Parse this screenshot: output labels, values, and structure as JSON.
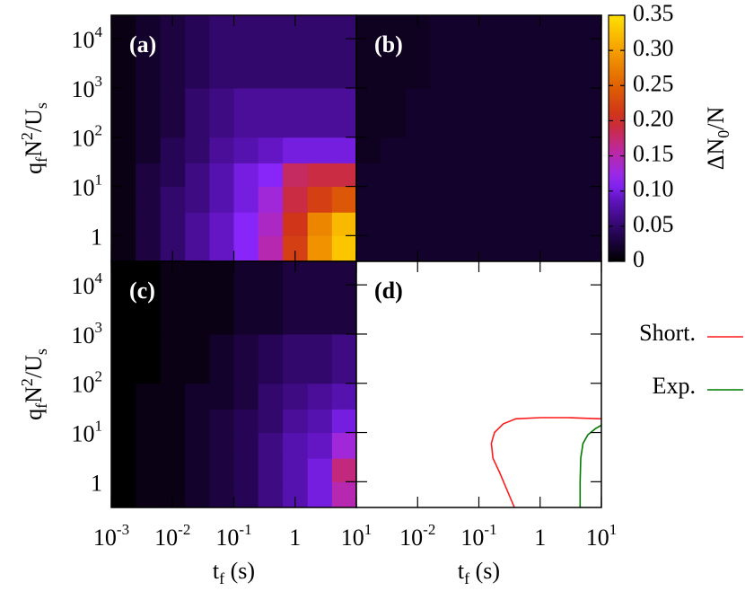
{
  "chart_data": [
    {
      "type": "heatmap",
      "title": "(a)",
      "y_label": [
        "q",
        "f",
        "N",
        "2",
        "/U",
        "s"
      ],
      "xlim": [
        0.001,
        10
      ],
      "ylim": [
        0.3,
        30000
      ],
      "xticks": [
        {
          "value": 0.001,
          "label": "10",
          "exponent": "-3"
        },
        {
          "value": 0.01,
          "label": "10",
          "exponent": "-2"
        },
        {
          "value": 0.1,
          "label": "10",
          "exponent": "-1"
        },
        1,
        {
          "value": 10,
          "label": "10",
          "exponent": "1"
        }
      ],
      "yticks": [
        1,
        {
          "value": 10,
          "label": "10",
          "exponent": "1"
        },
        {
          "value": 100,
          "label": "10",
          "exponent": "2"
        },
        {
          "value": 1000,
          "label": "10",
          "exponent": "3"
        },
        {
          "value": 10000,
          "label": "10",
          "exponent": "4"
        }
      ],
      "x_bins": [
        0.001,
        0.0025,
        0.0063,
        0.016,
        0.04,
        0.1,
        0.25,
        0.63,
        1.6,
        4,
        10
      ],
      "y_bins": [
        0.3,
        1,
        3,
        10,
        30,
        100,
        1000,
        30000
      ],
      "z": [
        [
          0.01,
          0.03,
          0.05,
          0.07,
          0.09,
          0.11,
          0.15,
          0.22,
          0.29,
          0.33
        ],
        [
          0.01,
          0.03,
          0.05,
          0.07,
          0.09,
          0.11,
          0.14,
          0.21,
          0.28,
          0.32
        ],
        [
          0.01,
          0.03,
          0.05,
          0.06,
          0.08,
          0.1,
          0.13,
          0.19,
          0.22,
          0.24
        ],
        [
          0.01,
          0.03,
          0.04,
          0.06,
          0.08,
          0.1,
          0.11,
          0.18,
          0.19,
          0.19
        ],
        [
          0.01,
          0.02,
          0.04,
          0.05,
          0.07,
          0.08,
          0.09,
          0.1,
          0.1,
          0.1
        ],
        [
          0.01,
          0.02,
          0.03,
          0.05,
          0.06,
          0.07,
          0.07,
          0.07,
          0.07,
          0.07
        ],
        [
          0.01,
          0.02,
          0.03,
          0.04,
          0.05,
          0.05,
          0.05,
          0.05,
          0.05,
          0.05
        ]
      ]
    },
    {
      "type": "heatmap",
      "title": "(b)",
      "xlim": [
        0.001,
        10
      ],
      "ylim": [
        0.3,
        30000
      ],
      "xticks": [
        0.001,
        0.01,
        0.1,
        1,
        10
      ],
      "yticks": [
        1,
        10,
        100,
        1000,
        10000
      ],
      "x_bins": [
        0.001,
        0.0025,
        0.0063,
        0.016,
        0.04,
        0.1,
        0.25,
        0.63,
        1.6,
        4,
        10
      ],
      "y_bins": [
        0.3,
        1,
        3,
        10,
        30,
        100,
        1000,
        30000
      ],
      "z": [
        [
          0.02,
          0.02,
          0.02,
          0.02,
          0.02,
          0.02,
          0.02,
          0.02,
          0.02,
          0.02
        ],
        [
          0.02,
          0.02,
          0.02,
          0.02,
          0.02,
          0.02,
          0.02,
          0.02,
          0.02,
          0.02
        ],
        [
          0.02,
          0.02,
          0.02,
          0.02,
          0.02,
          0.02,
          0.02,
          0.02,
          0.02,
          0.02
        ],
        [
          0.02,
          0.02,
          0.02,
          0.02,
          0.02,
          0.02,
          0.02,
          0.02,
          0.02,
          0.02
        ],
        [
          0.015,
          0.02,
          0.02,
          0.02,
          0.02,
          0.02,
          0.02,
          0.02,
          0.02,
          0.02
        ],
        [
          0.015,
          0.015,
          0.02,
          0.02,
          0.02,
          0.02,
          0.02,
          0.02,
          0.02,
          0.02
        ],
        [
          0.015,
          0.015,
          0.015,
          0.02,
          0.02,
          0.02,
          0.02,
          0.02,
          0.02,
          0.02
        ]
      ]
    },
    {
      "type": "heatmap",
      "title": "(c)",
      "x_label": [
        "t",
        "f",
        " (s)"
      ],
      "y_label": [
        "q",
        "f",
        "N",
        "2",
        "/U",
        "s"
      ],
      "xlim": [
        0.001,
        10
      ],
      "ylim": [
        0.3,
        30000
      ],
      "xticks": [
        {
          "value": 0.001,
          "label": "10",
          "exponent": "-3"
        },
        {
          "value": 0.01,
          "label": "10",
          "exponent": "-2"
        },
        {
          "value": 0.1,
          "label": "10",
          "exponent": "-1"
        },
        1,
        {
          "value": 10,
          "label": "10",
          "exponent": "1"
        }
      ],
      "yticks": [
        1,
        {
          "value": 10,
          "label": "10",
          "exponent": "1"
        },
        {
          "value": 100,
          "label": "10",
          "exponent": "2"
        },
        {
          "value": 1000,
          "label": "10",
          "exponent": "3"
        },
        {
          "value": 10000,
          "label": "10",
          "exponent": "4"
        }
      ],
      "x_bins": [
        0.001,
        0.0025,
        0.0063,
        0.016,
        0.04,
        0.1,
        0.25,
        0.63,
        1.6,
        4,
        10
      ],
      "y_bins": [
        0.3,
        1,
        3,
        10,
        30,
        100,
        1000,
        30000
      ],
      "z": [
        [
          0.0,
          0.01,
          0.01,
          0.02,
          0.03,
          0.04,
          0.06,
          0.08,
          0.1,
          0.15
        ],
        [
          0.0,
          0.01,
          0.01,
          0.02,
          0.03,
          0.04,
          0.06,
          0.08,
          0.1,
          0.17
        ],
        [
          0.0,
          0.01,
          0.01,
          0.02,
          0.03,
          0.04,
          0.06,
          0.08,
          0.09,
          0.13
        ],
        [
          0.0,
          0.01,
          0.01,
          0.02,
          0.03,
          0.04,
          0.05,
          0.07,
          0.08,
          0.1
        ],
        [
          0.0,
          0.01,
          0.01,
          0.02,
          0.02,
          0.03,
          0.05,
          0.06,
          0.07,
          0.08
        ],
        [
          0.0,
          0.0,
          0.01,
          0.01,
          0.02,
          0.03,
          0.04,
          0.05,
          0.05,
          0.06
        ],
        [
          0.0,
          0.0,
          0.01,
          0.01,
          0.01,
          0.02,
          0.02,
          0.03,
          0.03,
          0.03
        ]
      ]
    },
    {
      "type": "line",
      "title": "(d)",
      "x_label": [
        "t",
        "f",
        " (s)"
      ],
      "xlim": [
        0.001,
        10
      ],
      "ylim": [
        0.3,
        30000
      ],
      "xticks": [
        {
          "value": 0.001,
          "label": "10",
          "exponent": "-3"
        },
        {
          "value": 0.01,
          "label": "10",
          "exponent": "-2"
        },
        {
          "value": 0.1,
          "label": "10",
          "exponent": "-1"
        },
        1,
        {
          "value": 10,
          "label": "10",
          "exponent": "1"
        }
      ],
      "yticks": [
        1,
        10,
        100,
        1000,
        10000
      ],
      "series": [
        {
          "name": "Short.",
          "color": "#ff1a1a",
          "x": [
            0.38,
            0.3,
            0.22,
            0.17,
            0.16,
            0.18,
            0.25,
            0.4,
            1,
            3,
            10
          ],
          "values": [
            0.3,
            0.6,
            1.5,
            3,
            6,
            10,
            15,
            19,
            20,
            20,
            19
          ]
        },
        {
          "name": "Exp.",
          "color": "#007a00",
          "x": [
            4.5,
            4.5,
            4.6,
            5,
            6,
            8,
            10
          ],
          "values": [
            0.3,
            1,
            3,
            6,
            9,
            12,
            14
          ]
        }
      ]
    }
  ],
  "colorbar": {
    "label": [
      "ΔN",
      "0",
      "/N"
    ],
    "zlim": [
      0,
      0.35
    ],
    "ticks": [
      0,
      0.05,
      {
        "value": 0.1,
        "label": "0.10"
      },
      0.15,
      {
        "value": 0.2,
        "label": "0.20"
      },
      0.25,
      {
        "value": 0.3,
        "label": "0.30"
      },
      0.35
    ]
  }
}
